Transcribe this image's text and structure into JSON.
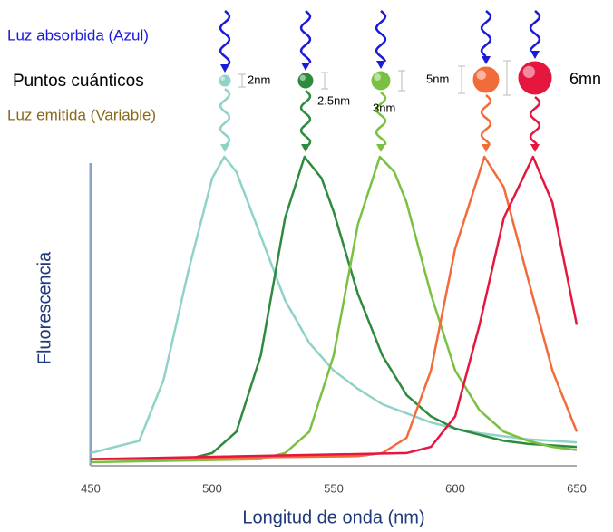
{
  "chart_data": {
    "type": "line",
    "xlabel": "Longitud de onda (nm)",
    "ylabel": "Fluorescencia",
    "xlim": [
      450,
      650
    ],
    "xticks": [
      450,
      500,
      550,
      600,
      650
    ],
    "ylim": [
      0,
      1
    ],
    "annotations": {
      "absorbed": "Luz absorbida (Azul)",
      "dots": "Puntos cuánticos",
      "emitted": "Luz emitida (Variable)"
    },
    "quantum_dots": [
      {
        "label": "2nm"
      },
      {
        "label": "2.5nm"
      },
      {
        "label": "3nm"
      },
      {
        "label": "5nm"
      },
      {
        "label": "6mn"
      }
    ],
    "series": [
      {
        "color": "#8fd3c8",
        "x": [
          450,
          470,
          480,
          490,
          500,
          505,
          510,
          520,
          530,
          540,
          550,
          560,
          570,
          580,
          590,
          600,
          610,
          620,
          630,
          640,
          650
        ],
        "values": [
          0.03,
          0.07,
          0.27,
          0.62,
          0.93,
          1,
          0.95,
          0.74,
          0.53,
          0.39,
          0.3,
          0.24,
          0.19,
          0.16,
          0.13,
          0.11,
          0.095,
          0.085,
          0.075,
          0.07,
          0.065
        ]
      },
      {
        "color": "#2e8b3e",
        "x": [
          450,
          490,
          500,
          510,
          520,
          530,
          538,
          545,
          550,
          560,
          570,
          580,
          590,
          600,
          610,
          620,
          630,
          650
        ],
        "values": [
          0.01,
          0.01,
          0.03,
          0.1,
          0.35,
          0.8,
          1,
          0.93,
          0.82,
          0.55,
          0.35,
          0.22,
          0.15,
          0.11,
          0.09,
          0.07,
          0.06,
          0.05
        ]
      },
      {
        "color": "#7ac143",
        "x": [
          450,
          520,
          530,
          540,
          550,
          560,
          569,
          575,
          580,
          590,
          600,
          610,
          620,
          630,
          640,
          650
        ],
        "values": [
          0,
          0.01,
          0.03,
          0.1,
          0.35,
          0.78,
          1,
          0.95,
          0.85,
          0.55,
          0.3,
          0.17,
          0.1,
          0.07,
          0.05,
          0.04
        ]
      },
      {
        "color": "#f26b3a",
        "x": [
          450,
          560,
          570,
          580,
          590,
          600,
          612,
          620,
          630,
          640,
          650
        ],
        "values": [
          0.01,
          0.02,
          0.03,
          0.08,
          0.3,
          0.7,
          1,
          0.9,
          0.6,
          0.3,
          0.1
        ]
      },
      {
        "color": "#e5173f",
        "x": [
          450,
          580,
          590,
          600,
          610,
          620,
          632,
          640,
          650
        ],
        "values": [
          0.01,
          0.03,
          0.05,
          0.15,
          0.45,
          0.8,
          1,
          0.85,
          0.45
        ]
      }
    ]
  }
}
